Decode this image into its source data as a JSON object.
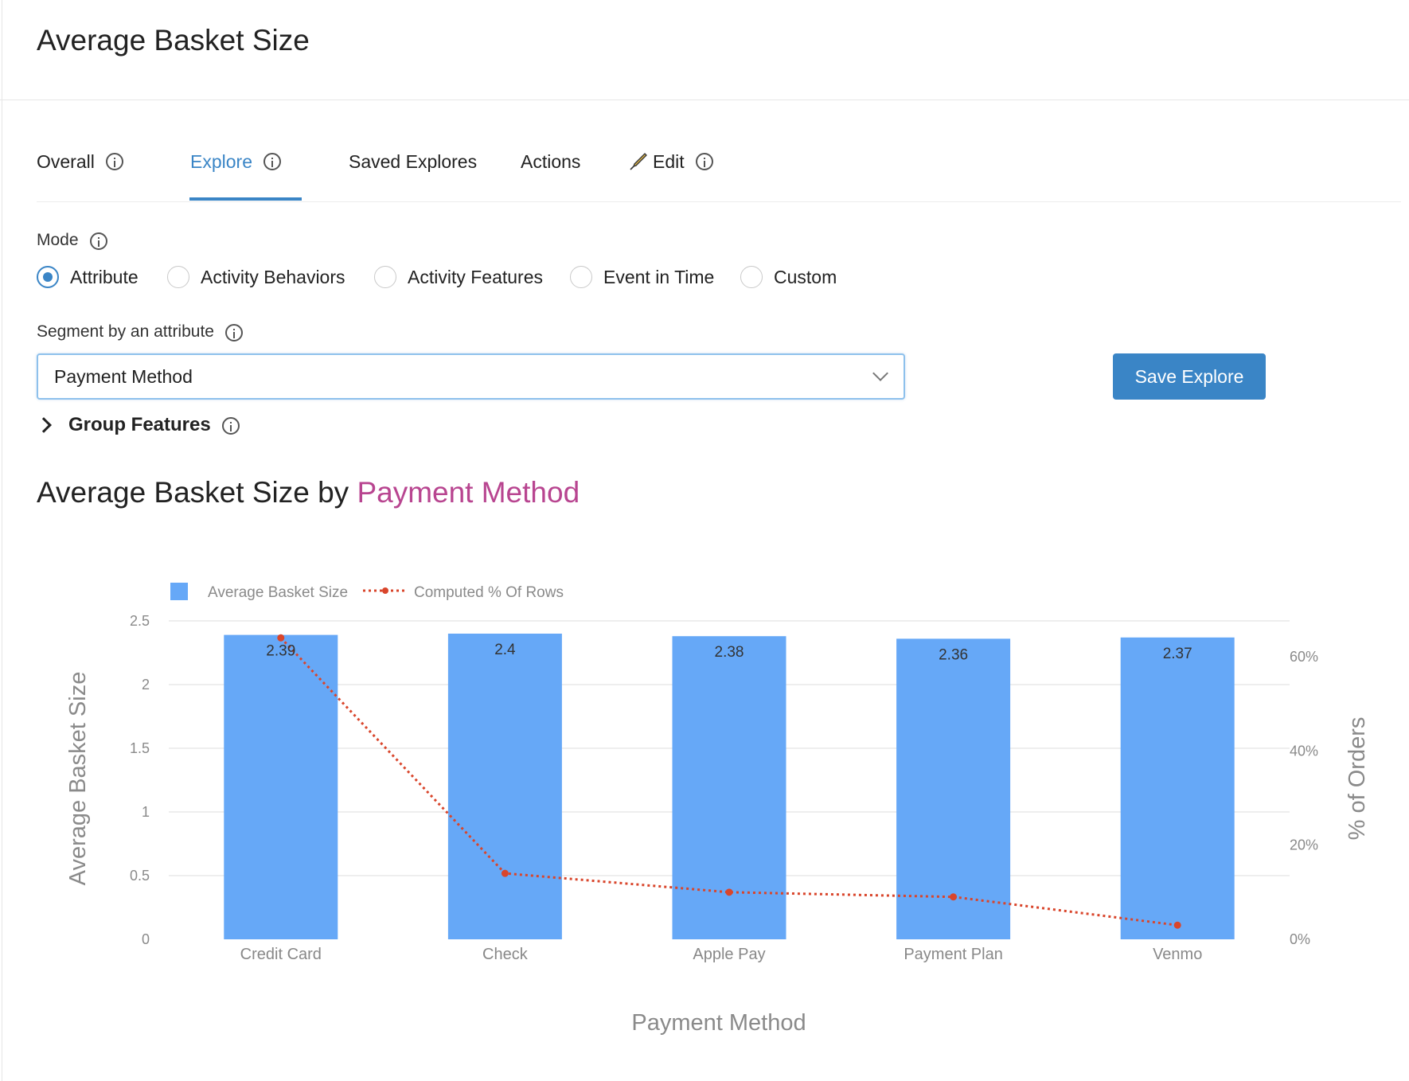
{
  "page": {
    "title": "Average Basket Size"
  },
  "tabs": [
    {
      "label": "Overall",
      "info": true
    },
    {
      "label": "Explore",
      "info": true,
      "active": true
    },
    {
      "label": "Saved Explores",
      "info": false
    },
    {
      "label": "Actions",
      "info": false
    },
    {
      "label": "Edit",
      "info": true,
      "icon": "pen-nib-icon"
    }
  ],
  "mode": {
    "label": "Mode",
    "options": [
      "Attribute",
      "Activity Behaviors",
      "Activity Features",
      "Event in Time",
      "Custom"
    ],
    "selected": "Attribute"
  },
  "segment": {
    "label": "Segment by an attribute",
    "value": "Payment Method"
  },
  "save_button": "Save Explore",
  "group_features": "Group Features",
  "chart_heading": {
    "prefix": "Average Basket Size by ",
    "attribute": "Payment Method"
  },
  "colors": {
    "accent": "#3a85c6",
    "bar": "#66a8f7",
    "line": "#d9452b",
    "attribute": "#b84590"
  },
  "chart_data": {
    "type": "bar",
    "categories": [
      "Credit Card",
      "Check",
      "Apple Pay",
      "Payment Plan",
      "Venmo"
    ],
    "series": [
      {
        "name": "Average Basket Size",
        "type": "bar",
        "axis": "left",
        "values": [
          2.39,
          2.4,
          2.38,
          2.36,
          2.37
        ]
      },
      {
        "name": "Computed % Of Rows",
        "type": "line",
        "axis": "right",
        "style": "dotted",
        "values": [
          64,
          14,
          10,
          9,
          3
        ]
      }
    ],
    "data_labels": [
      "2.39",
      "2.4",
      "2.38",
      "2.36",
      "2.37"
    ],
    "xlabel": "Payment Method",
    "ylabel": "Average Basket Size",
    "y2label": "% of Orders",
    "ylim": [
      0,
      2.5
    ],
    "y2lim": [
      0,
      67.6
    ],
    "yticks": [
      "0",
      "0.5",
      "1",
      "1.5",
      "2",
      "2.5"
    ],
    "y2ticks": [
      "0%",
      "20%",
      "40%",
      "60%"
    ],
    "grid": true,
    "legend_position": "top-left"
  }
}
